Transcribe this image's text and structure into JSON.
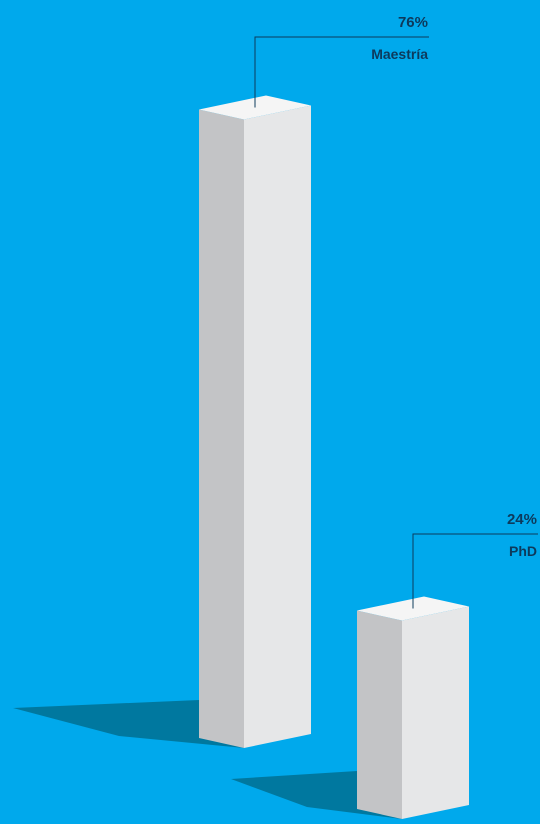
{
  "chart_data": {
    "type": "bar",
    "categories": [
      "Maestría",
      "PhD"
    ],
    "values": [
      76,
      24
    ],
    "value_labels": [
      "76%",
      "24%"
    ],
    "unit": "%",
    "ylim": [
      0,
      100
    ],
    "grid": false,
    "legend": "none",
    "title": "",
    "xlabel": "",
    "ylabel": ""
  },
  "colors": {
    "background": "#00a9ec",
    "label_text": "#0d3a5c",
    "bar_front": "#e6e7e8",
    "bar_side": "#c3c4c6",
    "bar_top": "#f5f5f5",
    "shadow": "#00789f",
    "leader_line": "#0d3a5c"
  }
}
